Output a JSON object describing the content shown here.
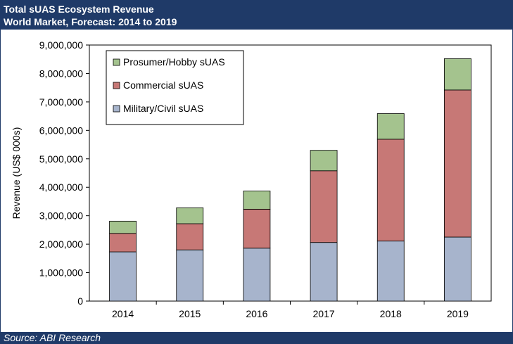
{
  "header": {
    "title": "Total sUAS Ecosystem Revenue",
    "subtitle": "World Market, Forecast: 2014 to 2019"
  },
  "footer": {
    "source": "Source: ABI Research"
  },
  "colors": {
    "header_bg": "#1f3a68",
    "military": "#a7b4cc",
    "commercial": "#c77876",
    "prosumer": "#a4c38e"
  },
  "chart_data": {
    "type": "bar",
    "stacked": true,
    "title": "Total sUAS Ecosystem Revenue",
    "subtitle": "World Market, Forecast: 2014 to 2019",
    "xlabel": "",
    "ylabel": "Revenue (US$ 000s)",
    "ylim": [
      0,
      9000000
    ],
    "yticks": [
      0,
      1000000,
      2000000,
      3000000,
      4000000,
      5000000,
      6000000,
      7000000,
      8000000,
      9000000
    ],
    "ytick_labels": [
      "0",
      "1,000,000",
      "2,000,000",
      "3,000,000",
      "4,000,000",
      "5,000,000",
      "6,000,000",
      "7,000,000",
      "8,000,000",
      "9,000,000"
    ],
    "categories": [
      "2014",
      "2015",
      "2016",
      "2017",
      "2018",
      "2019"
    ],
    "series": [
      {
        "name": "Military/Civil sUAS",
        "color": "#a7b4cc",
        "values": [
          1730000,
          1800000,
          1860000,
          2060000,
          2110000,
          2250000
        ]
      },
      {
        "name": "Commercial sUAS",
        "color": "#c77876",
        "values": [
          650000,
          920000,
          1370000,
          2520000,
          3580000,
          5170000
        ]
      },
      {
        "name": "Prosumer/Hobby sUAS",
        "color": "#a4c38e",
        "values": [
          430000,
          560000,
          640000,
          720000,
          900000,
          1100000
        ]
      }
    ],
    "legend": {
      "position": "top-left",
      "order": [
        "Prosumer/Hobby sUAS",
        "Commercial sUAS",
        "Military/Civil sUAS"
      ]
    }
  }
}
